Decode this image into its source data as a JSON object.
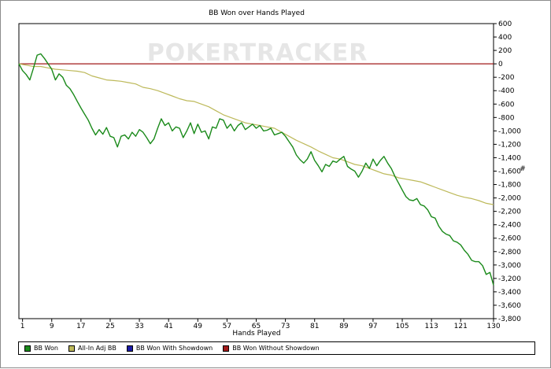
{
  "chart_data": {
    "type": "line",
    "title": "BB Won over Hands Played",
    "xlabel": "Hands Played",
    "ylabel": "#",
    "watermark": "POKERTRACKER",
    "x_ticks": [
      1,
      9,
      17,
      25,
      33,
      41,
      49,
      57,
      65,
      73,
      81,
      89,
      97,
      105,
      113,
      121,
      130
    ],
    "xlim": [
      0,
      130
    ],
    "ylim": [
      -3800,
      600
    ],
    "y_ticks": [
      600,
      400,
      200,
      0,
      -200,
      -400,
      -600,
      -800,
      -1000,
      -1200,
      -1400,
      -1600,
      -1800,
      -2000,
      -2200,
      -2400,
      -2600,
      -2800,
      -3000,
      -3200,
      -3400,
      -3600,
      -3800
    ],
    "y_tick_labels": [
      "600",
      "400",
      "200",
      "0",
      "-200",
      "-400",
      "-600",
      "-800",
      "-1,000",
      "-1,200",
      "-1,400",
      "-1,600",
      "-1,800",
      "-2,000",
      "-2,200",
      "-2,400",
      "-2,600",
      "-2,800",
      "-3,000",
      "-3,200",
      "-3,400",
      "-3,600",
      "-3,800"
    ],
    "grid": false,
    "legend_position": "bottom",
    "series": [
      {
        "name": "BB Won",
        "color": "#1a8a1a",
        "x": [
          0,
          1,
          2,
          3,
          4,
          5,
          6,
          7,
          8,
          9,
          10,
          11,
          12,
          13,
          14,
          15,
          16,
          17,
          18,
          19,
          20,
          21,
          22,
          23,
          24,
          25,
          26,
          27,
          28,
          29,
          30,
          31,
          32,
          33,
          34,
          35,
          36,
          37,
          38,
          39,
          40,
          41,
          42,
          43,
          44,
          45,
          46,
          47,
          48,
          49,
          50,
          51,
          52,
          53,
          54,
          55,
          56,
          57,
          58,
          59,
          60,
          61,
          62,
          63,
          64,
          65,
          66,
          67,
          68,
          69,
          70,
          71,
          72,
          73,
          74,
          75,
          76,
          77,
          78,
          79,
          80,
          81,
          82,
          83,
          84,
          85,
          86,
          87,
          88,
          89,
          90,
          91,
          92,
          93,
          94,
          95,
          96,
          97,
          98,
          99,
          100,
          101,
          102,
          103,
          104,
          105,
          106,
          107,
          108,
          109,
          110,
          111,
          112,
          113,
          114,
          115,
          116,
          117,
          118,
          119,
          120,
          121,
          122,
          123,
          124,
          125,
          126,
          127,
          128,
          129,
          130
        ],
        "values": [
          0,
          -100,
          -160,
          -240,
          -60,
          130,
          150,
          80,
          0,
          -80,
          -240,
          -150,
          -200,
          -320,
          -370,
          -460,
          -560,
          -660,
          -750,
          -840,
          -960,
          -1060,
          -980,
          -1050,
          -950,
          -1080,
          -1100,
          -1240,
          -1080,
          -1060,
          -1120,
          -1020,
          -1080,
          -980,
          -1020,
          -1100,
          -1190,
          -1120,
          -960,
          -820,
          -920,
          -880,
          -1000,
          -940,
          -960,
          -1100,
          -1000,
          -880,
          -1040,
          -900,
          -1020,
          -1000,
          -1120,
          -940,
          -960,
          -820,
          -840,
          -960,
          -900,
          -1000,
          -920,
          -880,
          -980,
          -940,
          -900,
          -960,
          -920,
          -1000,
          -990,
          -960,
          -1060,
          -1040,
          -1020,
          -1080,
          -1160,
          -1240,
          -1360,
          -1430,
          -1480,
          -1420,
          -1310,
          -1440,
          -1520,
          -1610,
          -1500,
          -1530,
          -1450,
          -1470,
          -1420,
          -1380,
          -1530,
          -1570,
          -1600,
          -1690,
          -1600,
          -1480,
          -1560,
          -1420,
          -1520,
          -1440,
          -1380,
          -1480,
          -1560,
          -1680,
          -1780,
          -1880,
          -1980,
          -2030,
          -2040,
          -2010,
          -2100,
          -2120,
          -2180,
          -2280,
          -2300,
          -2420,
          -2500,
          -2540,
          -2560,
          -2640,
          -2660,
          -2700,
          -2780,
          -2840,
          -2930,
          -2950,
          -2950,
          -3010,
          -3140,
          -3110,
          -3300
        ]
      },
      {
        "name": "All-In Adj BB",
        "color": "#bdb95a",
        "x": [
          0,
          2,
          4,
          6,
          8,
          10,
          12,
          14,
          16,
          18,
          20,
          22,
          24,
          26,
          28,
          30,
          32,
          34,
          36,
          38,
          40,
          42,
          44,
          46,
          48,
          50,
          52,
          54,
          56,
          58,
          60,
          62,
          64,
          66,
          68,
          70,
          72,
          74,
          76,
          78,
          80,
          82,
          84,
          86,
          88,
          90,
          92,
          94,
          96,
          98,
          100,
          102,
          104,
          106,
          108,
          110,
          112,
          114,
          116,
          118,
          120,
          122,
          124,
          126,
          128,
          130
        ],
        "values": [
          0,
          -20,
          -40,
          -40,
          -60,
          -80,
          -90,
          -100,
          -110,
          -130,
          -180,
          -210,
          -240,
          -250,
          -260,
          -280,
          -300,
          -350,
          -370,
          -400,
          -440,
          -480,
          -520,
          -550,
          -560,
          -600,
          -640,
          -700,
          -760,
          -800,
          -840,
          -880,
          -900,
          -920,
          -940,
          -960,
          -1020,
          -1080,
          -1140,
          -1190,
          -1240,
          -1300,
          -1350,
          -1400,
          -1420,
          -1460,
          -1500,
          -1520,
          -1560,
          -1600,
          -1640,
          -1660,
          -1700,
          -1720,
          -1740,
          -1760,
          -1800,
          -1840,
          -1880,
          -1920,
          -1960,
          -1990,
          -2010,
          -2040,
          -2080,
          -2100
        ]
      },
      {
        "name": "BB Won With Showdown",
        "color": "#1a1aa6",
        "x": [],
        "values": []
      },
      {
        "name": "BB Won Without Showdown",
        "color": "#a01a1a",
        "x": [
          0,
          130
        ],
        "values": [
          0,
          0
        ]
      }
    ]
  }
}
